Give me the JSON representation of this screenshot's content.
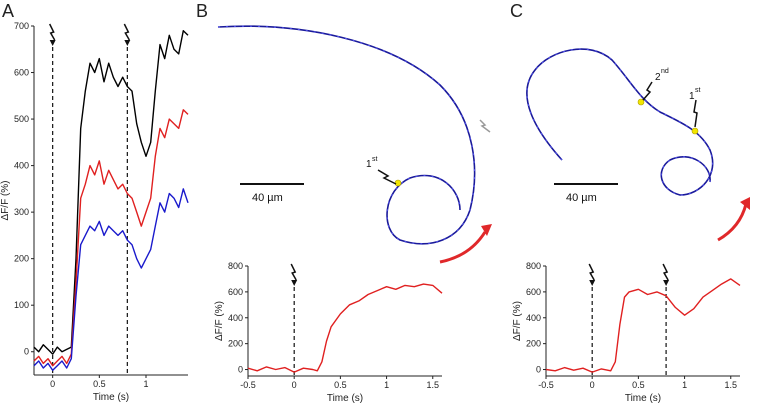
{
  "colors": {
    "black": "#000000",
    "red": "#e02020",
    "blue": "#1a1acc",
    "arrow": "#e0282a",
    "track": "#1a1a9a",
    "cell": "#f2e600",
    "gray_bolt": "#9a9a9a"
  },
  "panels": {
    "a": {
      "letter": "A"
    },
    "b": {
      "letter": "B",
      "scale_bar": "40 µm",
      "first_stim": "1",
      "first_sup": "st"
    },
    "c": {
      "letter": "C",
      "scale_bar": "40 µm",
      "first_stim": "1",
      "first_sup": "st",
      "second_stim": "2",
      "second_sup": "nd"
    }
  },
  "chart_data": [
    {
      "panel": "A",
      "type": "line",
      "xlabel": "Time (s)",
      "ylabel": "ΔF/F (%)",
      "xlim": [
        -0.2,
        1.45
      ],
      "ylim": [
        -50,
        700
      ],
      "xticks": [
        0,
        0.5,
        1
      ],
      "xtick_labels": [
        "0",
        "0.5",
        "1"
      ],
      "yticks": [
        0,
        100,
        200,
        300,
        400,
        500,
        600,
        700
      ],
      "ytick_labels": [
        "0",
        "100",
        "200",
        "300",
        "400",
        "500",
        "600",
        "700"
      ],
      "stimuli_x": [
        0,
        0.8
      ],
      "series": [
        {
          "color": "#000000",
          "x": [
            -0.2,
            -0.15,
            -0.1,
            -0.05,
            0,
            0.05,
            0.1,
            0.15,
            0.2,
            0.25,
            0.3,
            0.35,
            0.4,
            0.45,
            0.5,
            0.55,
            0.6,
            0.65,
            0.7,
            0.75,
            0.8,
            0.85,
            0.9,
            0.95,
            1.0,
            1.05,
            1.1,
            1.15,
            1.2,
            1.25,
            1.3,
            1.35,
            1.4,
            1.45
          ],
          "values": [
            10,
            0,
            15,
            5,
            -5,
            10,
            0,
            5,
            10,
            200,
            480,
            560,
            620,
            600,
            630,
            580,
            620,
            590,
            570,
            590,
            570,
            560,
            490,
            450,
            420,
            450,
            560,
            660,
            630,
            680,
            650,
            640,
            690,
            680
          ]
        },
        {
          "color": "#e02020",
          "x": [
            -0.2,
            -0.15,
            -0.1,
            -0.05,
            0,
            0.05,
            0.1,
            0.15,
            0.2,
            0.25,
            0.3,
            0.35,
            0.4,
            0.45,
            0.5,
            0.55,
            0.6,
            0.65,
            0.7,
            0.75,
            0.8,
            0.85,
            0.9,
            0.95,
            1.0,
            1.05,
            1.1,
            1.15,
            1.2,
            1.25,
            1.3,
            1.35,
            1.4,
            1.45
          ],
          "values": [
            -20,
            -10,
            -25,
            -15,
            -30,
            -20,
            -10,
            -25,
            -5,
            150,
            330,
            360,
            400,
            380,
            410,
            360,
            390,
            370,
            350,
            360,
            340,
            330,
            300,
            270,
            300,
            330,
            420,
            480,
            460,
            500,
            490,
            480,
            520,
            510
          ]
        },
        {
          "color": "#1a1acc",
          "x": [
            -0.2,
            -0.15,
            -0.1,
            -0.05,
            0,
            0.05,
            0.1,
            0.15,
            0.2,
            0.25,
            0.3,
            0.35,
            0.4,
            0.45,
            0.5,
            0.55,
            0.6,
            0.65,
            0.7,
            0.75,
            0.8,
            0.85,
            0.9,
            0.95,
            1.0,
            1.05,
            1.1,
            1.15,
            1.2,
            1.25,
            1.3,
            1.35,
            1.4,
            1.45
          ],
          "values": [
            -30,
            -20,
            -35,
            -25,
            -40,
            -30,
            -20,
            -35,
            -15,
            120,
            230,
            250,
            270,
            260,
            280,
            250,
            270,
            260,
            250,
            260,
            240,
            230,
            200,
            180,
            200,
            220,
            270,
            320,
            300,
            340,
            330,
            310,
            350,
            320
          ]
        }
      ]
    },
    {
      "panel": "B",
      "type": "line",
      "xlabel": "Time (s)",
      "ylabel": "ΔF/F (%)",
      "xlim": [
        -0.5,
        1.6
      ],
      "ylim": [
        -50,
        800
      ],
      "xticks": [
        -0.5,
        0,
        0.5,
        1,
        1.5
      ],
      "xtick_labels": [
        "-0.5",
        "0",
        "0.5",
        "1",
        "1.5"
      ],
      "yticks": [
        0,
        200,
        400,
        600,
        800
      ],
      "ytick_labels": [
        "0",
        "200",
        "400",
        "600",
        "800"
      ],
      "stimuli_x": [
        0
      ],
      "series": [
        {
          "color": "#e02020",
          "x": [
            -0.5,
            -0.4,
            -0.3,
            -0.2,
            -0.1,
            0,
            0.1,
            0.2,
            0.25,
            0.3,
            0.35,
            0.4,
            0.5,
            0.6,
            0.7,
            0.8,
            0.9,
            1.0,
            1.1,
            1.2,
            1.3,
            1.4,
            1.5,
            1.6
          ],
          "values": [
            10,
            -10,
            20,
            0,
            15,
            -20,
            10,
            0,
            -10,
            60,
            220,
            330,
            430,
            500,
            530,
            580,
            610,
            640,
            620,
            650,
            640,
            660,
            650,
            590
          ]
        }
      ]
    },
    {
      "panel": "C",
      "type": "line",
      "xlabel": "Time (s)",
      "ylabel": "ΔF/F (%)",
      "xlim": [
        -0.5,
        1.6
      ],
      "ylim": [
        -50,
        800
      ],
      "xticks": [
        -0.5,
        0,
        0.5,
        1,
        1.5
      ],
      "xtick_labels": [
        "-0.5",
        "0",
        "0.5",
        "1",
        "1.5"
      ],
      "yticks": [
        0,
        200,
        400,
        600,
        800
      ],
      "ytick_labels": [
        "0",
        "200",
        "400",
        "600",
        "800"
      ],
      "stimuli_x": [
        0,
        0.8
      ],
      "series": [
        {
          "color": "#e02020",
          "x": [
            -0.5,
            -0.4,
            -0.3,
            -0.2,
            -0.1,
            0,
            0.1,
            0.2,
            0.25,
            0.3,
            0.35,
            0.4,
            0.5,
            0.6,
            0.7,
            0.8,
            0.9,
            1.0,
            1.1,
            1.2,
            1.3,
            1.4,
            1.5,
            1.6
          ],
          "values": [
            0,
            -10,
            15,
            -5,
            10,
            -20,
            5,
            -10,
            60,
            350,
            560,
            600,
            620,
            580,
            600,
            570,
            480,
            420,
            470,
            560,
            610,
            660,
            700,
            650
          ]
        }
      ]
    }
  ]
}
